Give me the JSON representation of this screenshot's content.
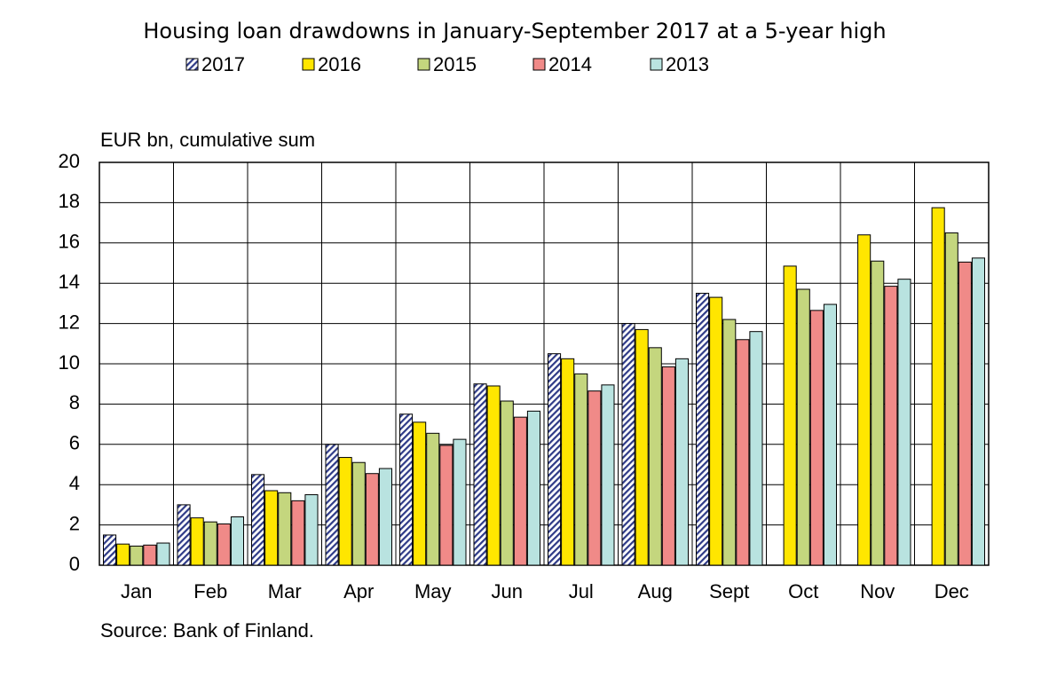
{
  "chart_data": {
    "type": "bar",
    "title": "Housing loan drawdowns in January-September 2017 at a 5-year high",
    "y_label": "EUR bn, cumulative sum",
    "source": "Source: Bank of Finland.",
    "categories": [
      "Jan",
      "Feb",
      "Mar",
      "Apr",
      "May",
      "Jun",
      "Jul",
      "Aug",
      "Sept",
      "Oct",
      "Nov",
      "Dec"
    ],
    "series": [
      {
        "name": "2017",
        "color": "#2e3a87",
        "pattern": "hatch",
        "values": [
          1.5,
          3.0,
          4.5,
          6.0,
          7.5,
          9.0,
          10.5,
          12.0,
          13.5,
          null,
          null,
          null
        ]
      },
      {
        "name": "2016",
        "color": "#ffe600",
        "values": [
          1.05,
          2.35,
          3.7,
          5.35,
          7.1,
          8.9,
          10.25,
          11.7,
          13.3,
          14.85,
          16.4,
          17.75
        ]
      },
      {
        "name": "2015",
        "color": "#c4d67e",
        "values": [
          0.95,
          2.15,
          3.6,
          5.1,
          6.55,
          8.15,
          9.5,
          10.8,
          12.2,
          13.7,
          15.1,
          16.5
        ]
      },
      {
        "name": "2014",
        "color": "#f08a88",
        "values": [
          1.0,
          2.05,
          3.2,
          4.55,
          5.95,
          7.35,
          8.65,
          9.85,
          11.2,
          12.65,
          13.85,
          15.05
        ]
      },
      {
        "name": "2013",
        "color": "#b9e3e0",
        "values": [
          1.1,
          2.4,
          3.5,
          4.8,
          6.25,
          7.65,
          8.95,
          10.25,
          11.6,
          12.95,
          14.2,
          15.25
        ]
      }
    ],
    "ylim": [
      0,
      20
    ],
    "yticks": [
      0,
      2,
      4,
      6,
      8,
      10,
      12,
      14,
      16,
      18,
      20
    ],
    "grid": true
  }
}
